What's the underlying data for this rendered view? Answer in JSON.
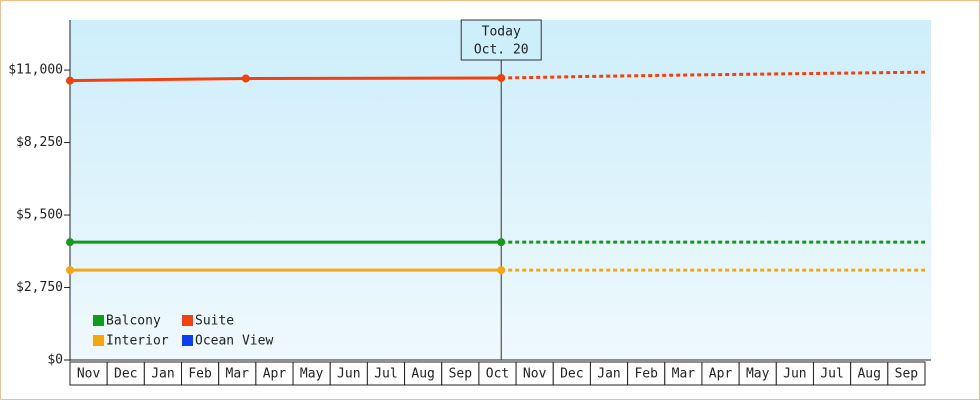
{
  "chart_data": {
    "type": "line",
    "categories": [
      "Nov",
      "Dec",
      "Jan",
      "Feb",
      "Mar",
      "Apr",
      "May",
      "Jun",
      "Jul",
      "Aug",
      "Sep",
      "Oct",
      "Nov",
      "Dec",
      "Jan",
      "Feb",
      "Mar",
      "Apr",
      "May",
      "Jun",
      "Jul",
      "Aug",
      "Sep"
    ],
    "xlim": [
      0,
      23
    ],
    "ylim": [
      0,
      12900
    ],
    "yticks": [
      {
        "value": 0,
        "label": "$0"
      },
      {
        "value": 2750,
        "label": "$2,750"
      },
      {
        "value": 5500,
        "label": "$5,500"
      },
      {
        "value": 8250,
        "label": "$8,250"
      },
      {
        "value": 11000,
        "label": "$11,000"
      }
    ],
    "annotation": {
      "x": 11.6,
      "label": "Today",
      "date": "Oct. 20"
    },
    "series": [
      {
        "name": "Balcony",
        "color": "#139a1b",
        "x": [
          0,
          11.6
        ],
        "values": [
          4470,
          4470
        ],
        "forecast_x": [
          11.6,
          23
        ],
        "forecast_values": [
          4470,
          4470
        ]
      },
      {
        "name": "Suite",
        "color": "#f5400e",
        "x": [
          0,
          4.73,
          11.6
        ],
        "values": [
          10600,
          10680,
          10700
        ],
        "forecast_x": [
          11.6,
          12.5,
          14,
          17,
          20,
          23
        ],
        "forecast_values": [
          10700,
          10720,
          10760,
          10820,
          10870,
          10920
        ]
      },
      {
        "name": "Interior",
        "color": "#f5a70e",
        "x": [
          0,
          11.6
        ],
        "values": [
          3410,
          3410
        ],
        "forecast_x": [
          11.6,
          23
        ],
        "forecast_values": [
          3410,
          3410
        ]
      },
      {
        "name": "Ocean View",
        "color": "#0a3ff0",
        "x": [],
        "values": [],
        "forecast_x": [],
        "forecast_values": []
      }
    ],
    "legend": "lower-left"
  }
}
